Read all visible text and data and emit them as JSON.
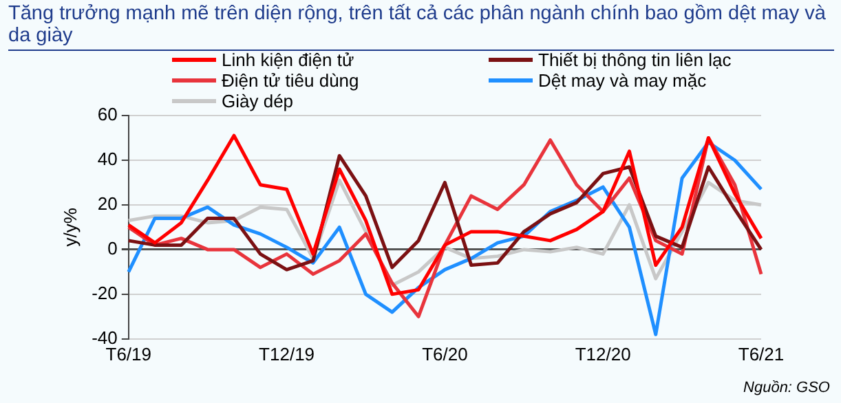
{
  "chart_data": {
    "type": "line",
    "title": "Tăng trưởng mạnh mẽ trên diện rộng, trên tất cả các phân ngành chính bao gồm dệt may và da giày",
    "ylabel": "y/y%",
    "categories": [
      "T6/19",
      null,
      null,
      null,
      null,
      null,
      "T12/19",
      null,
      null,
      null,
      null,
      null,
      "T6/20",
      null,
      null,
      null,
      null,
      null,
      "T12/20",
      null,
      null,
      null,
      null,
      null,
      "T6/21"
    ],
    "series": [
      {
        "name": "Linh kiện điện tử",
        "color": "#ff0000",
        "values": [
          11,
          3,
          12,
          31,
          51,
          29,
          27,
          -2,
          36,
          13,
          -20,
          -18,
          2,
          8,
          8,
          6,
          4,
          9,
          17,
          44,
          -7,
          10,
          50,
          25,
          5
        ]
      },
      {
        "name": "Thiết bị thông tin liên lạc",
        "color": "#7b1113",
        "values": [
          4,
          2,
          2,
          14,
          14,
          -2,
          -9,
          -5,
          42,
          24,
          -8,
          4,
          30,
          -7,
          -6,
          8,
          16,
          21,
          34,
          37,
          6,
          1,
          37,
          18,
          0
        ]
      },
      {
        "name": "Điện tử tiêu dùng",
        "color": "#e8343c",
        "values": [
          10,
          2,
          5,
          0,
          0,
          -8,
          -2,
          -11,
          -5,
          7,
          -15,
          -30,
          2,
          24,
          18,
          29,
          49,
          29,
          17,
          32,
          4,
          -2,
          50,
          29,
          -11
        ]
      },
      {
        "name": "Dệt may và may mặc",
        "color": "#1f8fff",
        "values": [
          -10,
          14,
          14,
          19,
          11,
          7,
          1,
          -6,
          10,
          -20,
          -28,
          -17,
          -9,
          -4,
          3,
          6,
          17,
          22,
          28,
          10,
          -38,
          32,
          48,
          40,
          27
        ]
      },
      {
        "name": "Giày dép",
        "color": "#c8c8c8",
        "values": [
          13,
          15,
          15,
          12,
          13,
          19,
          18,
          -4,
          31,
          8,
          -16,
          -10,
          1,
          -4,
          -3,
          0,
          -1,
          1,
          -2,
          20,
          -13,
          8,
          30,
          22,
          20
        ]
      }
    ],
    "ylim": [
      -40,
      60
    ],
    "yticks": [
      -40,
      -20,
      0,
      20,
      40,
      60
    ],
    "grid": "y",
    "legend": "top",
    "marker": "none",
    "line_style": "solid",
    "annotations": [
      "Nguồn: GSO"
    ]
  }
}
